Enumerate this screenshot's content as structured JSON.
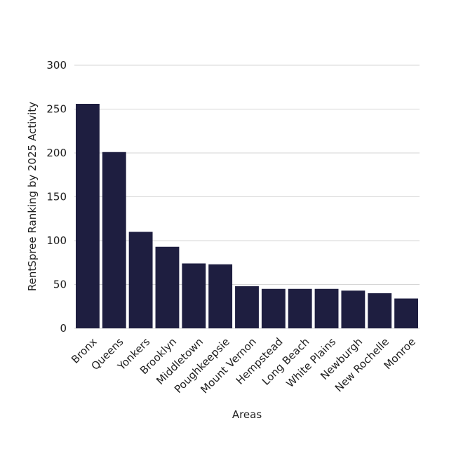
{
  "chart_data": {
    "type": "bar",
    "title": "",
    "xlabel": "Areas",
    "ylabel": "RentSpree Ranking by 2025 Activity",
    "categories": [
      "Bronx",
      "Queens",
      "Yonkers",
      "Brooklyn",
      "Middletown",
      "Poughkeepsie",
      "Mount Vernon",
      "Hempstead",
      "Long Beach",
      "White Plains",
      "Newburgh",
      "New Rochelle",
      "Monroe"
    ],
    "values": [
      256,
      201,
      110,
      93,
      74,
      73,
      48,
      45,
      45,
      45,
      43,
      40,
      34
    ],
    "ylim": [
      0,
      300
    ],
    "yticks": [
      0,
      50,
      100,
      150,
      200,
      250,
      300
    ],
    "grid": true,
    "legend": "none",
    "bar_color": "#1e1e40"
  }
}
